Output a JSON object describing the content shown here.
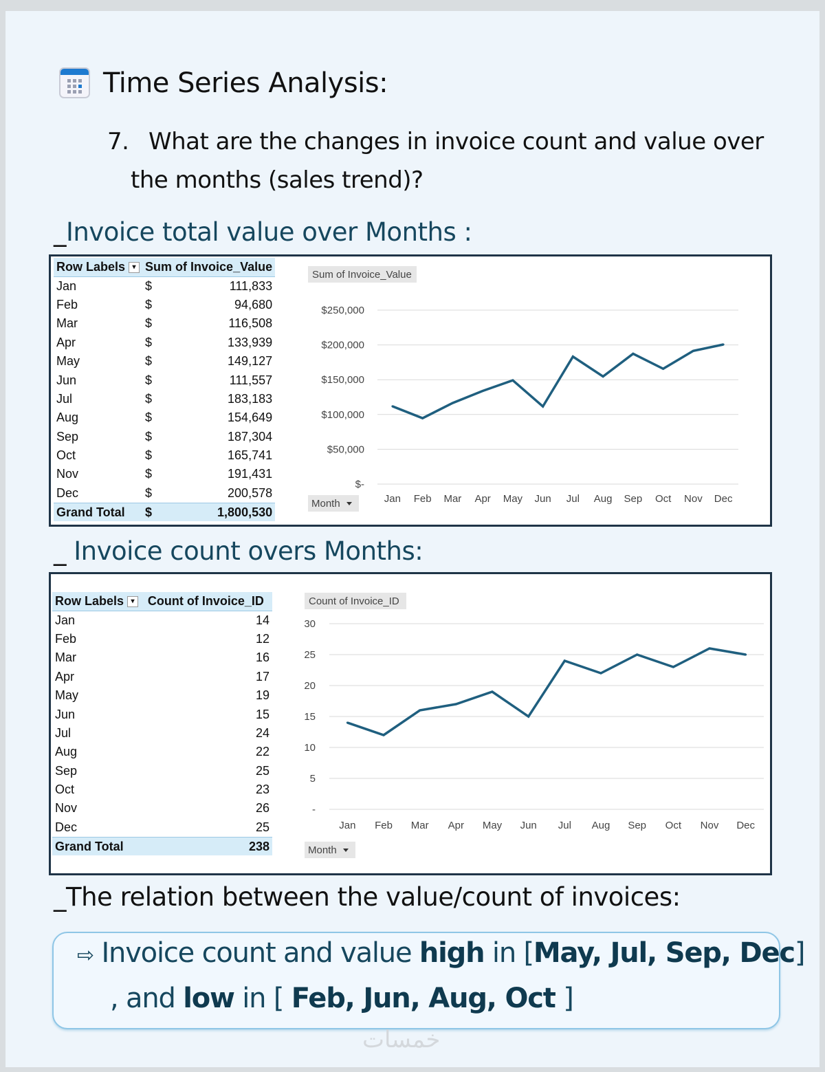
{
  "heading": "Time Series Analysis:",
  "question": {
    "number": "7.",
    "line1": "What are the changes in invoice count and value over",
    "line2": "the months (sales trend)?"
  },
  "section1": {
    "prefix": "_",
    "title": "Invoice total value over Months :"
  },
  "section2": {
    "prefix": "_",
    "title": "Invoice count overs Months:"
  },
  "section3": {
    "prefix": "_",
    "title": "The relation between the value/count of invoices:"
  },
  "table1": {
    "col1": "Row Labels",
    "col2": "Sum of Invoice_Value",
    "currency": "$",
    "rows": [
      [
        "Jan",
        "111,833"
      ],
      [
        "Feb",
        "94,680"
      ],
      [
        "Mar",
        "116,508"
      ],
      [
        "Apr",
        "133,939"
      ],
      [
        "May",
        "149,127"
      ],
      [
        "Jun",
        "111,557"
      ],
      [
        "Jul",
        "183,183"
      ],
      [
        "Aug",
        "154,649"
      ],
      [
        "Sep",
        "187,304"
      ],
      [
        "Oct",
        "165,741"
      ],
      [
        "Nov",
        "191,431"
      ],
      [
        "Dec",
        "200,578"
      ]
    ],
    "total_label": "Grand Total",
    "total": "1,800,530"
  },
  "table2": {
    "col1": "Row Labels",
    "col2": "Count of Invoice_ID",
    "rows": [
      [
        "Jan",
        "14"
      ],
      [
        "Feb",
        "12"
      ],
      [
        "Mar",
        "16"
      ],
      [
        "Apr",
        "17"
      ],
      [
        "May",
        "19"
      ],
      [
        "Jun",
        "15"
      ],
      [
        "Jul",
        "24"
      ],
      [
        "Aug",
        "22"
      ],
      [
        "Sep",
        "25"
      ],
      [
        "Oct",
        "23"
      ],
      [
        "Nov",
        "26"
      ],
      [
        "Dec",
        "25"
      ]
    ],
    "total_label": "Grand Total",
    "total": "238"
  },
  "chart_data": [
    {
      "type": "line",
      "title": "Sum of Invoice_Value",
      "filter": "Month",
      "categories": [
        "Jan",
        "Feb",
        "Mar",
        "Apr",
        "May",
        "Jun",
        "Jul",
        "Aug",
        "Sep",
        "Oct",
        "Nov",
        "Dec"
      ],
      "values": [
        111833,
        94680,
        116508,
        133939,
        149127,
        111557,
        183183,
        154649,
        187304,
        165741,
        191431,
        200578
      ],
      "ylim": [
        0,
        250000
      ],
      "yticks": [
        0,
        50000,
        100000,
        150000,
        200000,
        250000
      ],
      "ytick_labels": [
        "$-",
        "$50,000",
        "$100,000",
        "$150,000",
        "$200,000",
        "$250,000"
      ],
      "color": "#1f5f7f",
      "grid": true
    },
    {
      "type": "line",
      "title": "Count of Invoice_ID",
      "filter": "Month",
      "categories": [
        "Jan",
        "Feb",
        "Mar",
        "Apr",
        "May",
        "Jun",
        "Jul",
        "Aug",
        "Sep",
        "Oct",
        "Nov",
        "Dec"
      ],
      "values": [
        14,
        12,
        16,
        17,
        19,
        15,
        24,
        22,
        25,
        23,
        26,
        25
      ],
      "ylim": [
        0,
        30
      ],
      "yticks": [
        0,
        5,
        10,
        15,
        20,
        25,
        30
      ],
      "ytick_labels": [
        "-",
        "5",
        "10",
        "15",
        "20",
        "25",
        "30"
      ],
      "color": "#1f5f7f",
      "grid": true
    }
  ],
  "conclusion": {
    "arrow": "⇨",
    "l1a": "Invoice count and value ",
    "l1b": "high",
    "l1c": " in [",
    "l1d": "May, Jul, Sep, Dec",
    "l1e": "]",
    "l2a": ", and ",
    "l2b": "low",
    "l2c": " in [ ",
    "l2d": "Feb, Jun, Aug, Oct",
    "l2e": " ]"
  },
  "watermark": "خمسات"
}
